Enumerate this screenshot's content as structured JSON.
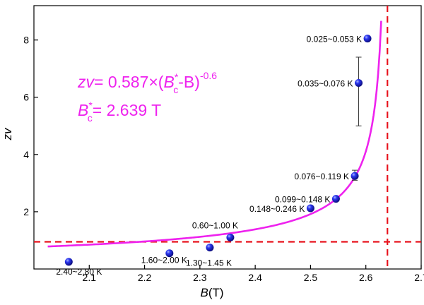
{
  "chart_data": {
    "type": "scatter",
    "xlabel": {
      "symbol": "B",
      "unit": "(T)"
    },
    "ylabel": "zv",
    "xlim": [
      2.0,
      2.7
    ],
    "ylim": [
      0,
      9.2
    ],
    "xticks": [
      "2.1",
      "2.2",
      "2.3",
      "2.4",
      "2.5",
      "2.6",
      "2.7"
    ],
    "yticks": [
      "2",
      "4",
      "6",
      "8"
    ],
    "points": [
      {
        "x": 2.063,
        "y": 0.25,
        "label": "2.40~2.80 K"
      },
      {
        "x": 2.245,
        "y": 0.55,
        "label": "1.60~2.00 K"
      },
      {
        "x": 2.318,
        "y": 0.75,
        "label": "1.30~1.45 K"
      },
      {
        "x": 2.355,
        "y": 1.1,
        "label": "0.60~1.00 K"
      },
      {
        "x": 2.5,
        "y": 2.12,
        "label": "0.148~0.246 K"
      },
      {
        "x": 2.546,
        "y": 2.45,
        "label": "0.099~0.148 K"
      },
      {
        "x": 2.58,
        "y": 3.25,
        "label": "0.076~0.119 K",
        "err": [
          3.1,
          3.45
        ]
      },
      {
        "x": 2.587,
        "y": 6.5,
        "label": "0.035~0.076 K",
        "err": [
          5.0,
          7.4
        ]
      },
      {
        "x": 2.603,
        "y": 8.05,
        "label": "0.025~0.053 K"
      }
    ],
    "fit": {
      "A": 0.587,
      "Bc": 2.639,
      "nu": -0.6,
      "color": "#ee22ee"
    },
    "reference_lines": {
      "horizontal_y": 0.95,
      "vertical_x": 2.639,
      "color": "#e8141e"
    },
    "point_color": "#1a1ae6",
    "annotation": {
      "formula_lhs": "zv",
      "formula_eq": "= 0.587×(",
      "formula_Bc": "B",
      "formula_star": "*",
      "formula_c": "c",
      "formula_mid": "-B)",
      "formula_exp": "-0.6",
      "bc_prefix": "B",
      "bc_star": "*",
      "bc_sub": "c",
      "bc_value": "= 2.639 T"
    }
  }
}
